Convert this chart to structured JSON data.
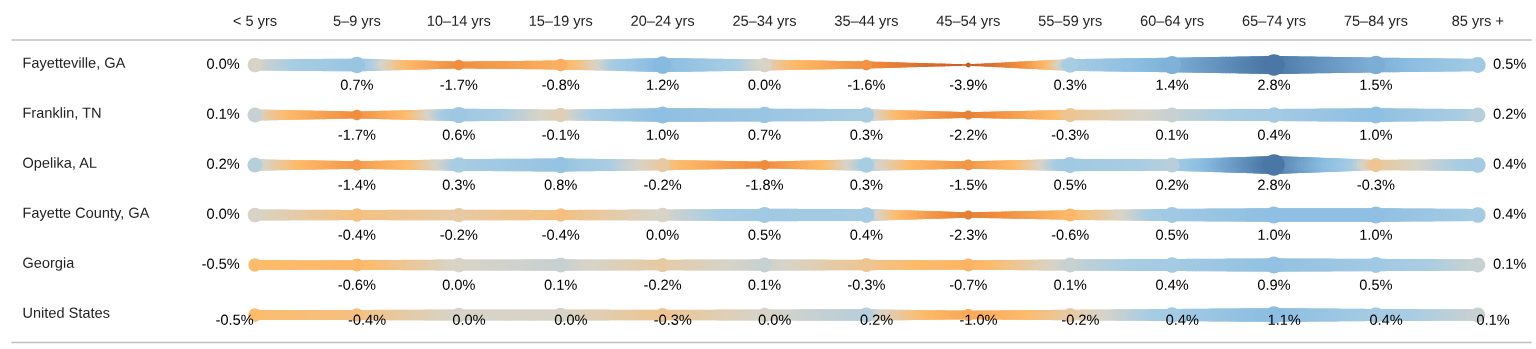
{
  "chart_data": {
    "type": "heatmap",
    "categories": [
      "< 5 yrs",
      "5–9 yrs",
      "10–14 yrs",
      "15–19 yrs",
      "20–24 yrs",
      "25–34 yrs",
      "35–44 yrs",
      "45–54 yrs",
      "55–59 yrs",
      "60–64 yrs",
      "65–74 yrs",
      "75–84 yrs",
      "85 yrs +"
    ],
    "y_categories": [
      "Fayetteville, GA",
      "Franklin, TN",
      "Opelika, AL",
      "Fayette County, GA",
      "Georgia",
      "United States"
    ],
    "cells": [
      [
        0.0,
        0.7,
        -1.7,
        -0.8,
        1.2,
        0.0,
        -1.6,
        -3.9,
        0.3,
        1.4,
        2.8,
        1.5,
        0.5
      ],
      [
        0.1,
        -1.7,
        0.6,
        -0.1,
        1.0,
        0.7,
        0.3,
        -2.2,
        -0.3,
        0.1,
        0.4,
        1.0,
        0.2
      ],
      [
        0.2,
        -1.4,
        0.3,
        0.8,
        -0.2,
        -1.8,
        0.3,
        -1.5,
        0.5,
        0.2,
        2.8,
        -0.3,
        0.4
      ],
      [
        0.0,
        -0.4,
        -0.2,
        -0.4,
        0.0,
        0.5,
        0.4,
        -2.3,
        -0.6,
        0.5,
        1.0,
        1.0,
        0.4
      ],
      [
        -0.5,
        -0.6,
        0.0,
        0.1,
        -0.2,
        0.1,
        -0.3,
        -0.7,
        0.1,
        0.4,
        0.9,
        0.5,
        0.1
      ],
      [
        -0.5,
        -0.4,
        0.0,
        0.0,
        -0.3,
        0.0,
        0.2,
        -1.0,
        -0.2,
        0.4,
        1.1,
        0.4,
        0.1
      ]
    ],
    "cell_labels": [
      [
        "0.0%",
        "0.7%",
        "-1.7%",
        "-0.8%",
        "1.2%",
        "0.0%",
        "-1.6%",
        "-3.9%",
        "0.3%",
        "1.4%",
        "2.8%",
        "1.5%",
        "0.5%"
      ],
      [
        "0.1%",
        "-1.7%",
        "0.6%",
        "-0.1%",
        "1.0%",
        "0.7%",
        "0.3%",
        "-2.2%",
        "-0.3%",
        "0.1%",
        "0.4%",
        "1.0%",
        "0.2%"
      ],
      [
        "0.2%",
        "-1.4%",
        "0.3%",
        "0.8%",
        "-0.2%",
        "-1.8%",
        "0.3%",
        "-1.5%",
        "0.5%",
        "0.2%",
        "2.8%",
        "-0.3%",
        "0.4%"
      ],
      [
        "0.0%",
        "-0.4%",
        "-0.2%",
        "-0.4%",
        "0.0%",
        "0.5%",
        "0.4%",
        "-2.3%",
        "-0.6%",
        "0.5%",
        "1.0%",
        "1.0%",
        "0.4%"
      ],
      [
        "-0.5%",
        "-0.6%",
        "0.0%",
        "0.1%",
        "-0.2%",
        "0.1%",
        "-0.3%",
        "-0.7%",
        "0.1%",
        "0.4%",
        "0.9%",
        "0.5%",
        "0.1%"
      ],
      [
        "-0.5%",
        "-0.4%",
        "0.0%",
        "0.0%",
        "-0.3%",
        "0.0%",
        "0.2%",
        "-1.0%",
        "-0.2%",
        "0.4%",
        "1.1%",
        "0.4%",
        "0.1%"
      ]
    ]
  }
}
